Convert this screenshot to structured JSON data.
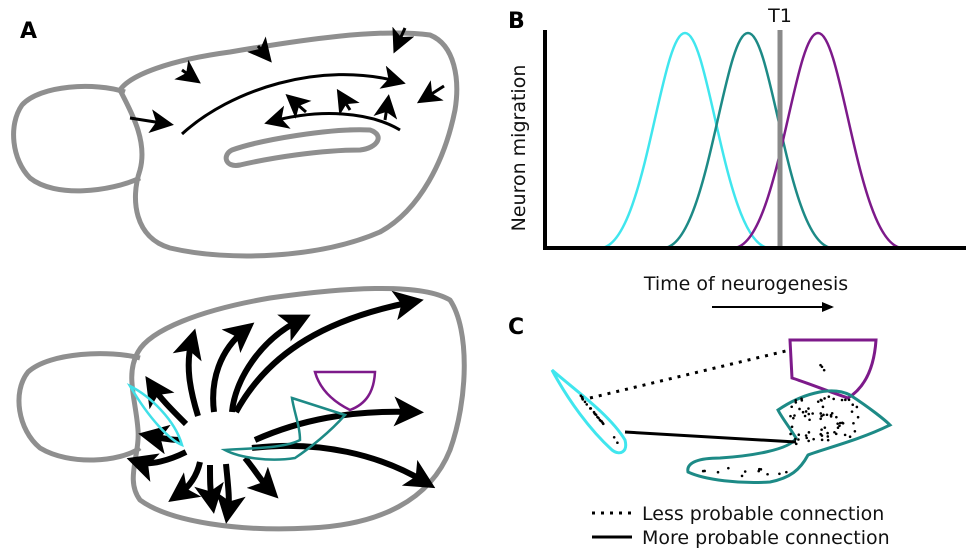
{
  "panels": {
    "a": {
      "label": "A"
    },
    "b": {
      "label": "B",
      "marker": "T1",
      "y_axis": "Neuron migration",
      "x_axis": "Time of neurogenesis"
    },
    "c": {
      "label": "C",
      "legend": [
        "Less probable connection",
        "More probable connection"
      ]
    }
  }
}
